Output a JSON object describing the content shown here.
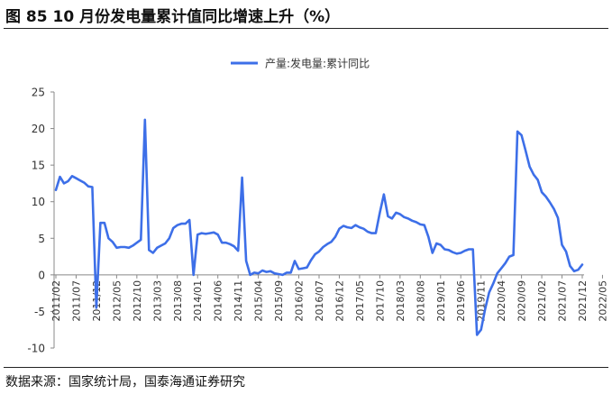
{
  "figure": {
    "title": "图 85 10 月份发电量累计值同比增速上升（%）",
    "source": "数据来源：国家统计局，国泰海通证券研究"
  },
  "chart_data": {
    "type": "line",
    "legend_position": "top-center",
    "grid": false,
    "ylim": [
      -10,
      25
    ],
    "yticks": [
      -10,
      -5,
      0,
      5,
      10,
      15,
      20,
      25
    ],
    "xlabel": "",
    "ylabel": "",
    "x_tick_labels": [
      "2011/02",
      "2011/07",
      "2011/12",
      "2012/05",
      "2012/10",
      "2013/03",
      "2013/08",
      "2014/01",
      "2014/06",
      "2014/11",
      "2015/04",
      "2015/09",
      "2016/02",
      "2016/07",
      "2016/12",
      "2017/05",
      "2017/10",
      "2018/03",
      "2018/08",
      "2019/01",
      "2019/06",
      "2019/11",
      "2020/04",
      "2020/09",
      "2021/02",
      "2021/07",
      "2021/12",
      "2022/05"
    ],
    "series": [
      {
        "name": "产量:发电量:累计同比",
        "color": "#3d6fe8",
        "x_start": "2011/02",
        "x_end": "2022/06",
        "values": [
          11.6,
          13.4,
          12.5,
          12.8,
          13.5,
          13.2,
          12.9,
          12.6,
          12.1,
          12.0,
          -4.5,
          7.1,
          7.1,
          5.0,
          4.5,
          3.7,
          3.8,
          3.8,
          3.7,
          4.0,
          4.4,
          4.8,
          21.2,
          3.4,
          3.0,
          3.7,
          4.0,
          4.3,
          5.0,
          6.4,
          6.8,
          7.0,
          7.0,
          7.5,
          0.0,
          5.5,
          5.7,
          5.6,
          5.7,
          5.8,
          5.5,
          4.4,
          4.4,
          4.2,
          3.9,
          3.3,
          13.3,
          1.9,
          0.0,
          0.3,
          0.2,
          0.6,
          0.4,
          0.5,
          0.2,
          0.1,
          0.0,
          0.3,
          0.3,
          1.9,
          0.8,
          0.9,
          1.0,
          2.0,
          2.8,
          3.2,
          3.8,
          4.2,
          4.5,
          5.2,
          6.3,
          6.7,
          6.5,
          6.4,
          6.8,
          6.5,
          6.3,
          5.9,
          5.7,
          5.7,
          8.5,
          11.0,
          8.0,
          7.7,
          8.5,
          8.3,
          7.9,
          7.7,
          7.4,
          7.2,
          6.9,
          6.8,
          5.2,
          3.0,
          4.3,
          4.1,
          3.5,
          3.4,
          3.1,
          2.9,
          3.0,
          3.3,
          3.5,
          3.5,
          -8.2,
          -7.5,
          -4.7,
          -2.4,
          -1.2,
          0.2,
          0.9,
          1.6,
          2.5,
          2.7,
          19.6,
          19.1,
          17.0,
          14.8,
          13.7,
          13.0,
          11.3,
          10.7,
          9.9,
          9.0,
          7.8,
          4.1,
          3.2,
          1.2,
          0.5,
          0.7,
          1.4
        ]
      }
    ]
  }
}
